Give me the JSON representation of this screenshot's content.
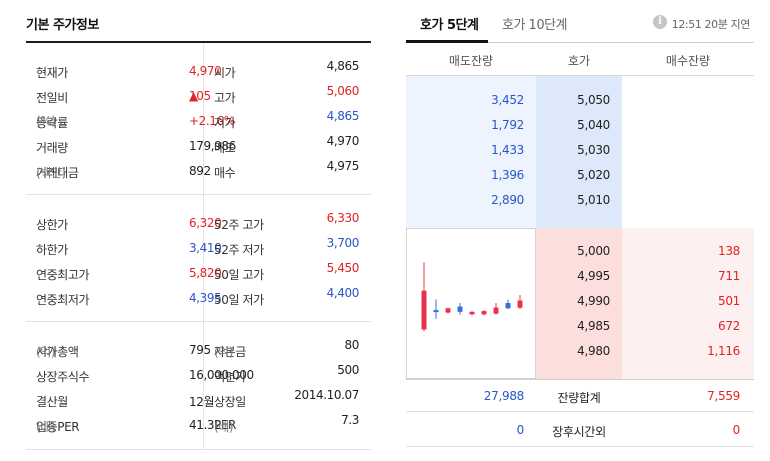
{
  "left": {
    "title": "기본 주가정보",
    "group1": [
      {
        "l1": "현재가",
        "v1": "4,970",
        "c1": "red",
        "l2": "시가",
        "v2": "4,865",
        "c2": ""
      },
      {
        "l1": "전일비",
        "v1": "105",
        "arrow": "▲",
        "c1": "red",
        "l2": "고가",
        "v2": "5,060",
        "c2": "red"
      },
      {
        "l1": "등락률",
        "u1": "(%)",
        "v1": "+2.16%",
        "c1": "red",
        "l2": "저가",
        "v2": "4,865",
        "c2": "blue"
      },
      {
        "l1": "거래량",
        "v1": "179,986",
        "c1": "",
        "l2": "매도",
        "v2": "4,970",
        "c2": ""
      },
      {
        "l1": "거래대금",
        "u1": "(백만)",
        "v1": "892",
        "c1": "",
        "l2": "매수",
        "v2": "4,975",
        "c2": ""
      }
    ],
    "group2": [
      {
        "l1": "상한가",
        "v1": "6,320",
        "c1": "red",
        "l2": "52주 고가",
        "v2": "6,330",
        "c2": "red"
      },
      {
        "l1": "하한가",
        "v1": "3,410",
        "c1": "blue",
        "l2": "52주 저가",
        "v2": "3,700",
        "c2": "blue"
      },
      {
        "l1": "연중최고가",
        "v1": "5,820",
        "c1": "red",
        "l2": "50일 고가",
        "v2": "5,450",
        "c2": "red"
      },
      {
        "l1": "연중최저가",
        "v1": "4,395",
        "c1": "blue",
        "l2": "50일 저가",
        "v2": "4,400",
        "c2": "blue"
      }
    ],
    "group3": [
      {
        "l1": "시가총액",
        "u1": "(억)",
        "v1": "795",
        "c1": "",
        "l2": "자본금",
        "u2": "(억)",
        "v2": "80",
        "c2": ""
      },
      {
        "l1": "상장주식수",
        "v1": "16,000,000",
        "c1": "",
        "l2": "액면가",
        "v2": "500",
        "c2": ""
      },
      {
        "l1": "결산월",
        "v1": "12월",
        "c1": "",
        "l2": "상장일",
        "v2": "2014.10.07",
        "c2": ""
      },
      {
        "l1": "업종PER",
        "u1": "(배)",
        "v1": "41.32",
        "c1": "",
        "l2": "PER",
        "u2": "(배)",
        "v2": "7.3",
        "c2": ""
      }
    ]
  },
  "right": {
    "tabs": [
      {
        "label": "호가 5단계",
        "active": true
      },
      {
        "label": "호가 10단계",
        "active": false
      }
    ],
    "info_icon": "i",
    "delay_text": "12:51 20분 지연",
    "headers": {
      "ask": "매도잔량",
      "price": "호가",
      "bid": "매수잔량"
    },
    "asks": [
      {
        "qty": "3,452",
        "price": "5,050"
      },
      {
        "qty": "1,792",
        "price": "5,040"
      },
      {
        "qty": "1,433",
        "price": "5,030"
      },
      {
        "qty": "1,396",
        "price": "5,020"
      },
      {
        "qty": "2,890",
        "price": "5,010"
      }
    ],
    "bids": [
      {
        "price": "5,000",
        "qty": "138"
      },
      {
        "price": "4,995",
        "qty": "711"
      },
      {
        "price": "4,990",
        "qty": "501"
      },
      {
        "price": "4,985",
        "qty": "672"
      },
      {
        "price": "4,980",
        "qty": "1,116"
      }
    ],
    "summary": [
      {
        "ask": "27,988",
        "label": "잔량합계",
        "bid": "7,559"
      },
      {
        "ask": "0",
        "label": "장후시간외",
        "bid": "0"
      }
    ],
    "chart_data": {
      "type": "candlestick",
      "candles": [
        {
          "open": 4870,
          "close": 4980,
          "high": 5060,
          "low": 4865,
          "dir": "up"
        },
        {
          "open": 4925,
          "close": 4920,
          "high": 4955,
          "low": 4900,
          "dir": "down"
        },
        {
          "open": 4930,
          "close": 4918,
          "high": 4932,
          "low": 4915,
          "dir": "up"
        },
        {
          "open": 4935,
          "close": 4920,
          "high": 4945,
          "low": 4912,
          "dir": "down"
        },
        {
          "open": 4920,
          "close": 4913,
          "high": 4922,
          "low": 4910,
          "dir": "up"
        },
        {
          "open": 4913,
          "close": 4922,
          "high": 4925,
          "low": 4910,
          "dir": "up"
        },
        {
          "open": 4915,
          "close": 4932,
          "high": 4945,
          "low": 4912,
          "dir": "up"
        },
        {
          "open": 4945,
          "close": 4930,
          "high": 4955,
          "low": 4928,
          "dir": "down"
        },
        {
          "open": 4932,
          "close": 4952,
          "high": 4968,
          "low": 4928,
          "dir": "up"
        }
      ],
      "ylim": [
        4860,
        5070
      ],
      "colors": {
        "up": "#e8324a",
        "down": "#3a6fd0"
      }
    }
  }
}
